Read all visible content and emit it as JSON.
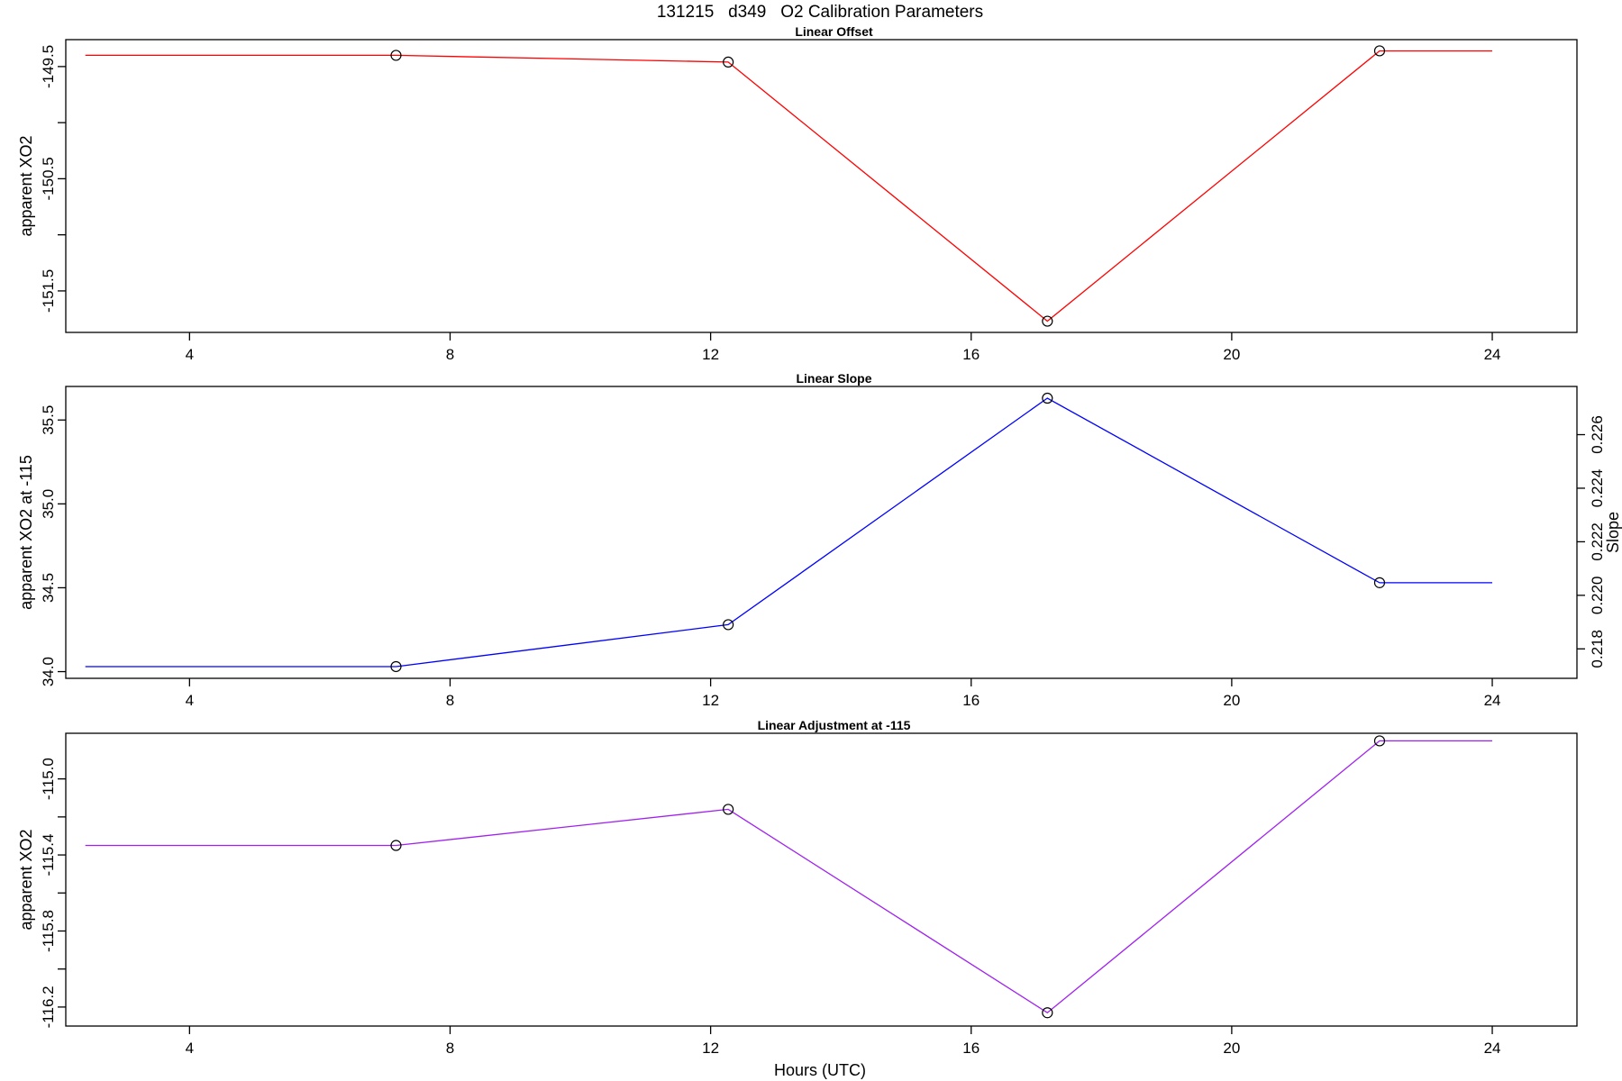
{
  "figure": {
    "title": "131215   d349   O2 Calibration Parameters",
    "xlabel": "Hours (UTC)"
  },
  "chart_data": [
    {
      "type": "line",
      "title": "Linear Offset",
      "xlabel": "",
      "ylabel": "apparent XO2",
      "xlim": [
        2.1,
        25.3
      ],
      "ylim": [
        -151.87,
        -149.26
      ],
      "xticks": [
        4,
        8,
        12,
        16,
        20,
        24
      ],
      "xtick_labels": [
        "4",
        "8",
        "12",
        "16",
        "20",
        "24"
      ],
      "yticks": [
        -151.5,
        -151,
        -150.5,
        -150,
        -149.5
      ],
      "ytick_labels": [
        "-151.5",
        "",
        "-150.5",
        "",
        "-149.5"
      ],
      "color": "#ff0000",
      "line": {
        "x": [
          2.4,
          7.17,
          12.27,
          17.17,
          22.27,
          24.0
        ],
        "y": [
          -149.4,
          -149.4,
          -149.46,
          -151.77,
          -149.36,
          -149.36
        ]
      },
      "points": {
        "x": [
          7.17,
          12.27,
          17.17,
          22.27
        ],
        "y": [
          -149.4,
          -149.46,
          -151.77,
          -149.36
        ]
      }
    },
    {
      "type": "line",
      "title": "Linear Slope",
      "xlabel": "",
      "ylabel": "apparent XO2 at -115",
      "y2label": "Slope",
      "xlim": [
        2.1,
        25.3
      ],
      "ylim": [
        33.96,
        35.7
      ],
      "xticks": [
        4,
        8,
        12,
        16,
        20,
        24
      ],
      "xtick_labels": [
        "4",
        "8",
        "12",
        "16",
        "20",
        "24"
      ],
      "yticks": [
        34.0,
        34.5,
        35.0,
        35.5
      ],
      "ytick_labels": [
        "34.0",
        "34.5",
        "35.0",
        "35.5"
      ],
      "y2lim": [
        0.2169,
        0.2278
      ],
      "y2ticks": [
        0.218,
        0.22,
        0.222,
        0.224,
        0.226
      ],
      "y2tick_labels": [
        "0.218",
        "0.220",
        "0.222",
        "0.224",
        "0.226"
      ],
      "color": "#0000ff",
      "line": {
        "x": [
          2.4,
          7.17,
          12.27,
          17.17,
          22.27,
          24.0
        ],
        "y": [
          34.03,
          34.03,
          34.28,
          35.63,
          34.53,
          34.53
        ]
      },
      "points": {
        "x": [
          7.17,
          12.27,
          17.17,
          22.27
        ],
        "y": [
          34.03,
          34.28,
          35.63,
          34.53
        ]
      }
    },
    {
      "type": "line",
      "title": "Linear Adjustment at -115",
      "xlabel": "Hours (UTC)",
      "ylabel": "apparent XO2",
      "xlim": [
        2.1,
        25.3
      ],
      "ylim": [
        -116.3,
        -114.76
      ],
      "xticks": [
        4,
        8,
        12,
        16,
        20,
        24
      ],
      "xtick_labels": [
        "4",
        "8",
        "12",
        "16",
        "20",
        "24"
      ],
      "yticks": [
        -116.2,
        -116.0,
        -115.8,
        -115.6,
        -115.4,
        -115.2,
        -115.0
      ],
      "ytick_labels": [
        "-116.2",
        "",
        "-115.8",
        "",
        "-115.4",
        "",
        "-115.0"
      ],
      "color": "#a020f0",
      "line": {
        "x": [
          2.4,
          7.17,
          12.27,
          17.17,
          22.27,
          24.0
        ],
        "y": [
          -115.35,
          -115.35,
          -115.16,
          -116.23,
          -114.8,
          -114.8
        ]
      },
      "points": {
        "x": [
          7.17,
          12.27,
          17.17,
          22.27
        ],
        "y": [
          -115.35,
          -115.16,
          -116.23,
          -114.8
        ]
      }
    }
  ]
}
